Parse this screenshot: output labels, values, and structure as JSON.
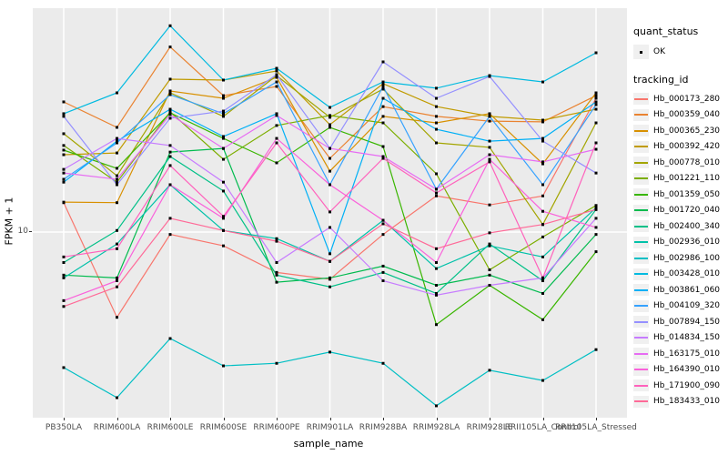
{
  "figure": {
    "background": "#FFFFFF",
    "panel_background": "#EBEBEB",
    "gridline_color": "#FFFFFF",
    "point_color": "#000000",
    "axis_text_color": "#4D4D4D",
    "y_axis": {
      "title": "FPKM + 1",
      "tick_labels": [
        "10"
      ]
    },
    "x_axis": {
      "title": "sample_name"
    }
  },
  "legend": {
    "quant_status": {
      "title": "quant_status",
      "items": [
        {
          "label": "OK"
        }
      ]
    },
    "tracking_id": {
      "title": "tracking_id",
      "items": [
        {
          "label": "Hb_000173_280",
          "color": "#F8766D"
        },
        {
          "label": "Hb_000359_040",
          "color": "#EA8331"
        },
        {
          "label": "Hb_000365_230",
          "color": "#D89000"
        },
        {
          "label": "Hb_000392_420",
          "color": "#C09B00"
        },
        {
          "label": "Hb_000778_010",
          "color": "#A3A500"
        },
        {
          "label": "Hb_001221_110",
          "color": "#7CAE00"
        },
        {
          "label": "Hb_001359_050",
          "color": "#39B600"
        },
        {
          "label": "Hb_001720_040",
          "color": "#00BB4E"
        },
        {
          "label": "Hb_002400_340",
          "color": "#00C087"
        },
        {
          "label": "Hb_002936_010",
          "color": "#00C1A9"
        },
        {
          "label": "Hb_002986_100",
          "color": "#00BFC4"
        },
        {
          "label": "Hb_003428_010",
          "color": "#00BAE0"
        },
        {
          "label": "Hb_003861_060",
          "color": "#00B0F6"
        },
        {
          "label": "Hb_004109_320",
          "color": "#35A2FF"
        },
        {
          "label": "Hb_007894_150",
          "color": "#9590FF"
        },
        {
          "label": "Hb_014834_150",
          "color": "#C77CFF"
        },
        {
          "label": "Hb_163175_010",
          "color": "#E76BF3"
        },
        {
          "label": "Hb_164390_010",
          "color": "#FA62DB"
        },
        {
          "label": "Hb_171900_090",
          "color": "#FF62BC"
        },
        {
          "label": "Hb_183433_010",
          "color": "#FF6A98"
        }
      ]
    }
  },
  "chart_data": {
    "type": "line",
    "title": "",
    "xlabel": "sample_name",
    "ylabel": "FPKM + 1",
    "y_scale": "log10",
    "y_ticks": [
      10
    ],
    "legend_position": "right",
    "point_shape": "filled-square",
    "point_status": "OK",
    "grid": "vertical-major-and-y10",
    "categories": [
      "PB350LA",
      "RRIM600LA",
      "RRIM600LE",
      "RRIM600SE",
      "RRIM600PE",
      "RRIM901LA",
      "RRIM928BA",
      "RRIM928LA",
      "RRIM928LE",
      "RRII105LA_Control",
      "RRII105LA_Stressed"
    ],
    "series": [
      {
        "name": "Hb_000173_280",
        "color": "#F8766D",
        "values": [
          14.5,
          3.4,
          9.7,
          8.4,
          6.0,
          5.5,
          9.7,
          15.8,
          14.1,
          15.8,
          54.3
        ]
      },
      {
        "name": "Hb_000359_040",
        "color": "#EA8331",
        "values": [
          51.9,
          37.6,
          104,
          56.2,
          63.1,
          25.4,
          48.9,
          43.2,
          40.7,
          40.3,
          56.2
        ]
      },
      {
        "name": "Hb_000365_230",
        "color": "#D89000",
        "values": [
          14.6,
          14.5,
          59.6,
          54.3,
          70.8,
          21.6,
          43.2,
          39.8,
          44.7,
          23.7,
          58.2
        ]
      },
      {
        "name": "Hb_000392_420",
        "color": "#C09B00",
        "values": [
          26.6,
          27.2,
          69.2,
          68.4,
          76.7,
          38.9,
          65.3,
          48.9,
          43.2,
          41.2,
          47.3
        ]
      },
      {
        "name": "Hb_000778_010",
        "color": "#A3A500",
        "values": [
          34.7,
          20.4,
          58.2,
          43.2,
          72.4,
          42.7,
          61.0,
          30.9,
          29.2,
          11.0,
          39.8
        ]
      },
      {
        "name": "Hb_001221_110",
        "color": "#7CAE00",
        "values": [
          29.9,
          18.8,
          45.7,
          25.1,
          38.5,
          43.7,
          39.8,
          20.9,
          6.2,
          9.4,
          14.0
        ]
      },
      {
        "name": "Hb_001359_050",
        "color": "#39B600",
        "values": [
          28.2,
          22.4,
          45.2,
          32.7,
          24.0,
          37.6,
          29.5,
          3.1,
          5.1,
          3.3,
          7.8
        ]
      },
      {
        "name": "Hb_001720_040",
        "color": "#00BB4E",
        "values": [
          5.8,
          5.6,
          27.5,
          28.8,
          5.3,
          5.6,
          6.5,
          5.1,
          5.8,
          4.6,
          9.7
        ]
      },
      {
        "name": "Hb_002400_340",
        "color": "#00C087",
        "values": [
          6.8,
          10.2,
          26.0,
          16.8,
          5.8,
          5.0,
          6.0,
          4.6,
          8.6,
          5.4,
          13.3
        ]
      },
      {
        "name": "Hb_002936_010",
        "color": "#00C1A9",
        "values": [
          5.6,
          8.6,
          18.2,
          10.2,
          9.2,
          6.9,
          11.6,
          6.3,
          8.4,
          7.3,
          13.6
        ]
      },
      {
        "name": "Hb_002986_100",
        "color": "#00BFC4",
        "values": [
          1.8,
          1.23,
          2.6,
          1.84,
          1.9,
          2.19,
          1.9,
          1.11,
          1.74,
          1.53,
          2.26
        ]
      },
      {
        "name": "Hb_003428_010",
        "color": "#00BAE0",
        "values": [
          44.7,
          58.2,
          136,
          68.4,
          79.4,
          48.4,
          66.8,
          61.7,
          72.4,
          66.8,
          96.6
        ]
      },
      {
        "name": "Hb_003861_060",
        "color": "#00B0F6",
        "values": [
          18.8,
          31.6,
          47.3,
          33.5,
          44.7,
          7.6,
          54.3,
          36.7,
          31.6,
          32.7,
          51.9
        ]
      },
      {
        "name": "Hb_004109_320",
        "color": "#35A2FF",
        "values": [
          19.5,
          30.9,
          56.9,
          44.7,
          66.8,
          18.2,
          63.1,
          17.2,
          43.2,
          18.2,
          50.1
        ]
      },
      {
        "name": "Hb_007894_150",
        "color": "#9590FF",
        "values": [
          43.2,
          18.2,
          42.2,
          46.2,
          73.3,
          28.8,
          86.1,
          54.3,
          71.6,
          31.6,
          21.1
        ]
      },
      {
        "name": "Hb_014834_150",
        "color": "#C77CFF",
        "values": [
          22.1,
          32.7,
          29.9,
          18.8,
          6.8,
          10.6,
          5.4,
          4.5,
          5.1,
          5.6,
          11.9
        ]
      },
      {
        "name": "Hb_163175_010",
        "color": "#E76BF3",
        "values": [
          21.1,
          19.5,
          44.2,
          28.8,
          43.7,
          28.8,
          26.0,
          17.2,
          26.6,
          24.3,
          28.5
        ]
      },
      {
        "name": "Hb_164390_010",
        "color": "#FA62DB",
        "values": [
          4.2,
          5.4,
          18.2,
          11.9,
          32.7,
          18.2,
          11.6,
          6.8,
          25.1,
          13.0,
          10.6
        ]
      },
      {
        "name": "Hb_171900_090",
        "color": "#FF62BC",
        "values": [
          7.3,
          8.1,
          23.2,
          12.2,
          30.9,
          12.9,
          25.4,
          16.4,
          24.3,
          5.6,
          30.9
        ]
      },
      {
        "name": "Hb_183433_010",
        "color": "#FF6A98",
        "values": [
          3.9,
          5.0,
          11.9,
          10.2,
          8.9,
          6.9,
          11.1,
          8.1,
          9.9,
          11.0,
          13.3
        ]
      }
    ]
  }
}
